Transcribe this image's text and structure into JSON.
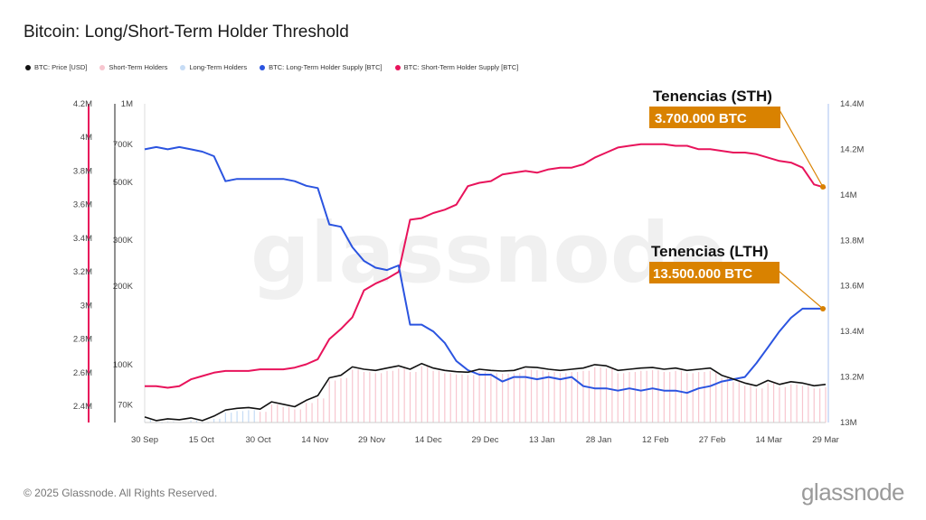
{
  "title": "Bitcoin: Long/Short-Term Holder Threshold",
  "footer": "© 2025 Glassnode. All Rights Reserved.",
  "brand": "glassnode",
  "watermark": "glassnode",
  "legend": [
    {
      "label": "BTC: Price [USD]",
      "color": "#111111"
    },
    {
      "label": "Short-Term Holders",
      "color": "#f7c6cf"
    },
    {
      "label": "Long-Term Holders",
      "color": "#c6dcf5"
    },
    {
      "label": "BTC: Long-Term Holder Supply [BTC]",
      "color": "#2b54e0"
    },
    {
      "label": "BTC: Short-Term Holder Supply [BTC]",
      "color": "#e8135b"
    }
  ],
  "annotations": {
    "sth": {
      "title": "Tenencias (STH)",
      "value": "3.700.000 BTC"
    },
    "lth": {
      "title": "Tenencias (LTH)",
      "value": "13.500.000 BTC"
    }
  },
  "colors": {
    "price": "#111111",
    "lth": "#2b54e0",
    "sth": "#e8135b",
    "sth_bar": "#f7c6cf",
    "lth_bar": "#c6dcf5",
    "annotation_bg": "#d98200"
  },
  "chart_data": {
    "type": "line",
    "x_ticks": [
      "30 Sep",
      "15 Oct",
      "30 Oct",
      "14 Nov",
      "29 Nov",
      "14 Dec",
      "29 Dec",
      "13 Jan",
      "28 Jan",
      "12 Feb",
      "27 Feb",
      "14 Mar",
      "29 Mar"
    ],
    "axes": {
      "sth_supply": {
        "ticks": [
          "2.4M",
          "2.6M",
          "2.8M",
          "3M",
          "3.2M",
          "3.4M",
          "3.6M",
          "3.8M",
          "4M",
          "4.2M"
        ],
        "range": [
          2.36,
          4.2
        ]
      },
      "price": {
        "ticks": [
          "70K",
          "100K",
          "200K",
          "300K",
          "500K",
          "700K",
          "1M"
        ],
        "scale": "log",
        "range": [
          60000,
          1000000
        ]
      },
      "lth_supply": {
        "ticks": [
          "13M",
          "13.2M",
          "13.4M",
          "13.6M",
          "13.8M",
          "14M",
          "14.2M",
          "14.4M"
        ],
        "range": [
          13.0,
          14.4
        ]
      }
    },
    "series": [
      {
        "name": "BTC: Price [USD]",
        "unit": "USD",
        "values": [
          63000,
          61000,
          62000,
          61500,
          62500,
          61000,
          63500,
          67000,
          68000,
          68500,
          67500,
          72000,
          70500,
          69000,
          73000,
          76000,
          89000,
          91000,
          98000,
          96000,
          95000,
          97000,
          99000,
          96000,
          101000,
          97000,
          95000,
          94000,
          93500,
          96000,
          95000,
          94500,
          95000,
          98000,
          97500,
          96000,
          95000,
          96000,
          97000,
          100000,
          99000,
          95000,
          96000,
          97000,
          97500,
          96000,
          97000,
          95000,
          96000,
          97000,
          91000,
          88000,
          85000,
          83000,
          87000,
          84000,
          86000,
          85000,
          83000,
          84000
        ]
      },
      {
        "name": "BTC: Long-Term Holder Supply [BTC]",
        "unit": "M BTC",
        "values": [
          14.2,
          14.21,
          14.2,
          14.21,
          14.2,
          14.19,
          14.17,
          14.06,
          14.07,
          14.07,
          14.07,
          14.07,
          14.07,
          14.06,
          14.04,
          14.03,
          13.87,
          13.86,
          13.77,
          13.71,
          13.68,
          13.67,
          13.69,
          13.43,
          13.43,
          13.4,
          13.35,
          13.27,
          13.23,
          13.21,
          13.21,
          13.18,
          13.2,
          13.2,
          13.19,
          13.2,
          13.19,
          13.2,
          13.16,
          13.15,
          13.15,
          13.14,
          13.15,
          13.14,
          13.15,
          13.14,
          13.14,
          13.13,
          13.15,
          13.16,
          13.18,
          13.19,
          13.2,
          13.26,
          13.33,
          13.4,
          13.46,
          13.5,
          13.5,
          13.5
        ]
      },
      {
        "name": "BTC: Short-Term Holder Supply [BTC]",
        "unit": "M BTC",
        "values": [
          2.52,
          2.52,
          2.51,
          2.52,
          2.56,
          2.58,
          2.6,
          2.61,
          2.61,
          2.61,
          2.62,
          2.62,
          2.62,
          2.63,
          2.65,
          2.68,
          2.8,
          2.86,
          2.93,
          3.09,
          3.13,
          3.16,
          3.2,
          3.51,
          3.52,
          3.55,
          3.57,
          3.6,
          3.71,
          3.73,
          3.74,
          3.78,
          3.79,
          3.8,
          3.79,
          3.81,
          3.82,
          3.82,
          3.84,
          3.88,
          3.91,
          3.94,
          3.95,
          3.96,
          3.96,
          3.96,
          3.95,
          3.95,
          3.93,
          3.93,
          3.92,
          3.91,
          3.91,
          3.9,
          3.88,
          3.86,
          3.85,
          3.82,
          3.72,
          3.7
        ]
      }
    ],
    "bars": {
      "lth_dominant_range": [
        "1 Oct",
        "30 Oct"
      ],
      "sth_dominant_range": [
        "30 Oct",
        "1 Apr"
      ]
    }
  }
}
